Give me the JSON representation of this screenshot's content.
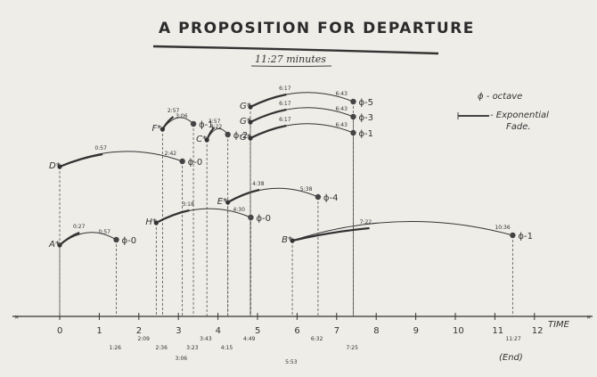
{
  "title": "A PROPOSITION FOR DEPARTURE",
  "subtitle": "11:27 minutes",
  "legend": {
    "octave": "ϕ - octave",
    "fade_line1": "- Exponential",
    "fade_line2": "Fade."
  },
  "axis": {
    "label": "TIME",
    "ticks": [
      "0",
      "1",
      "2",
      "3",
      "4",
      "5",
      "6",
      "7",
      "8",
      "9",
      "10",
      "11",
      "12"
    ]
  },
  "events": [
    {
      "label": "A*",
      "start": 0,
      "end": 1.43,
      "marks": [
        "0:27",
        "0:57"
      ],
      "phi": "ϕ-0",
      "y": 80
    },
    {
      "label": "D*",
      "start": 0,
      "end": 3.1,
      "marks": [
        "0:57",
        "2:42"
      ],
      "phi": "ϕ-0",
      "y": 168
    },
    {
      "label": "F*",
      "start": 2.6,
      "end": 3.38,
      "marks": [
        "2:57",
        "3:06"
      ],
      "phi": "ϕ-1",
      "y": 210
    },
    {
      "label": "C*",
      "start": 3.72,
      "end": 4.25,
      "marks": [
        "3:57",
        "4:22"
      ],
      "phi": "ϕ-2",
      "y": 198
    },
    {
      "label": "H*",
      "start": 2.44,
      "end": 4.83,
      "marks": [
        "3:18",
        "4:30"
      ],
      "phi": "ϕ-0",
      "y": 105
    },
    {
      "label": "E*",
      "start": 4.25,
      "end": 6.53,
      "marks": [
        "4:38",
        "5:38"
      ],
      "phi": "ϕ-4",
      "y": 128
    },
    {
      "label": "G*",
      "start": 4.82,
      "end": 7.42,
      "marks": [
        "6:17",
        "6:43"
      ],
      "phi": "ϕ-5",
      "y": 235
    },
    {
      "label": "G*",
      "start": 4.82,
      "end": 7.42,
      "marks": [
        "6:17",
        "6:43"
      ],
      "phi": "ϕ-3",
      "y": 218
    },
    {
      "label": "G*",
      "start": 4.82,
      "end": 7.42,
      "marks": [
        "6:17",
        "6:43"
      ],
      "phi": "ϕ-1",
      "y": 200
    },
    {
      "label": "B*",
      "start": 5.88,
      "end": 11.45,
      "marks": [
        "7:22",
        "10:36"
      ],
      "phi": "ϕ-1",
      "y": 85
    }
  ],
  "time_labels": [
    "1:26",
    "2:09",
    "2:36",
    "3:06",
    "3:23",
    "3:43",
    "4:15",
    "4:49",
    "5:53",
    "6:32",
    "7:25",
    "11:27"
  ],
  "end_label": "(End)"
}
